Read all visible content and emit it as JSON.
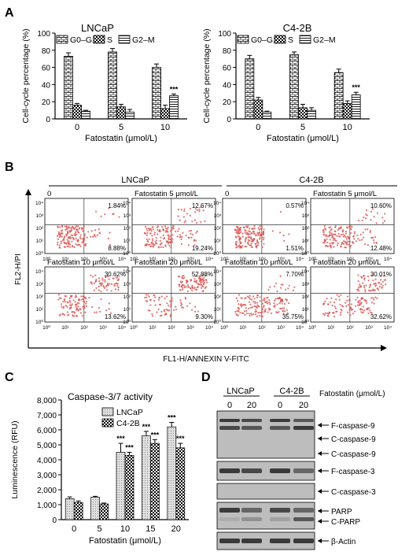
{
  "panel_letters": {
    "A": "A",
    "B": "B",
    "C": "C",
    "D": "D"
  },
  "colors": {
    "bar_fill": "#ffffff",
    "bar_stroke": "#000000",
    "scatter_dot": "#d9534f",
    "blot_bg": "#bdbdbd",
    "blot_band": "#2b2b2b",
    "light_bar": "#dcdcdc"
  },
  "chart_data": [
    {
      "panel": "A-left",
      "type": "bar",
      "title": "LNCaP",
      "xlabel": "Fatostatin (μmol/L)",
      "ylabel": "Cell-cycle percentage (%)",
      "ylim": [
        0,
        100
      ],
      "yticks": [
        0,
        20,
        40,
        60,
        80,
        100
      ],
      "categories": [
        "0",
        "5",
        "10"
      ],
      "legend": [
        "G0–G1",
        "S",
        "G2–M"
      ],
      "series": [
        {
          "name": "G0–G1",
          "pattern": "brick",
          "values": [
            73,
            78,
            60
          ],
          "errors": [
            4,
            4,
            4
          ]
        },
        {
          "name": "S",
          "pattern": "checker",
          "values": [
            16,
            14,
            12
          ],
          "errors": [
            2,
            3,
            4
          ]
        },
        {
          "name": "G2–M",
          "pattern": "hlines",
          "values": [
            9,
            8,
            27
          ],
          "errors": [
            1,
            3,
            2
          ]
        }
      ],
      "annotations": [
        {
          "category": "10",
          "series": "G2–M",
          "text": "***"
        }
      ]
    },
    {
      "panel": "A-right",
      "type": "bar",
      "title": "C4-2B",
      "xlabel": "Fatostatin (μmol/L)",
      "ylabel": "Cell-cycle percentage (%)",
      "ylim": [
        0,
        100
      ],
      "yticks": [
        0,
        20,
        40,
        60,
        80,
        100
      ],
      "categories": [
        "0",
        "5",
        "10"
      ],
      "legend": [
        "G0–G1",
        "S",
        "G2–M"
      ],
      "series": [
        {
          "name": "G0–G1",
          "pattern": "brick",
          "values": [
            70,
            75,
            54
          ],
          "errors": [
            4,
            3,
            4
          ]
        },
        {
          "name": "S",
          "pattern": "checker",
          "values": [
            22,
            13,
            18
          ],
          "errors": [
            3,
            4,
            3
          ]
        },
        {
          "name": "G2–M",
          "pattern": "hlines",
          "values": [
            8,
            10,
            28
          ],
          "errors": [
            1,
            3,
            3
          ]
        }
      ],
      "annotations": [
        {
          "category": "10",
          "series": "G2–M",
          "text": "***"
        }
      ]
    },
    {
      "panel": "B",
      "type": "scatter",
      "xlabel": "FL1-H/ANNEXIN V-FITC",
      "ylabel": "FL2-H/PI",
      "group_labels": [
        "LNCaP",
        "C4-2B"
      ],
      "axis_ticks": [
        "10⁰",
        "10¹",
        "10²",
        "10³",
        "10⁴"
      ],
      "plots": [
        {
          "label": "0",
          "upper_right": "1.84%",
          "lower_right": "8.88%"
        },
        {
          "label": "Fatostatin 5 μmol/L",
          "upper_right": "12.67%",
          "lower_right": "19.24%"
        },
        {
          "label": "0",
          "upper_right": "0.57%",
          "lower_right": "1.51%"
        },
        {
          "label": "Fatostatin 5 μmol/L",
          "upper_right": "10.60%",
          "lower_right": "12.48%"
        },
        {
          "label": "Fatostatin 10 μmol/L",
          "upper_right": "30.62%",
          "lower_right": "13.62%"
        },
        {
          "label": "Fatostatin 20 μmol/L",
          "upper_right": "52.88%",
          "lower_right": "9.30%"
        },
        {
          "label": "Fatostatin 10 μmol/L",
          "upper_right": "7.70%",
          "lower_right": "35.75%"
        },
        {
          "label": "Fatostatin 20 μmol/L",
          "upper_right": "30.01%",
          "lower_right": "32.62%"
        }
      ]
    },
    {
      "panel": "C",
      "type": "bar",
      "title": "Caspase-3/7 activity",
      "xlabel": "Fatostatin (μmol/L)",
      "ylabel": "Luminescence (RFU)",
      "ylim": [
        0,
        8000
      ],
      "yticks": [
        "0",
        "1,000",
        "2,000",
        "3,000",
        "4,000",
        "5,000",
        "6,000",
        "7,000",
        "8,000"
      ],
      "categories": [
        "0",
        "5",
        "10",
        "15",
        "20"
      ],
      "legend": [
        "LNCaP",
        "C4-2B"
      ],
      "series": [
        {
          "name": "LNCaP",
          "pattern": "dots",
          "values": [
            1400,
            1500,
            4500,
            5600,
            6200
          ],
          "errors": [
            120,
            60,
            600,
            300,
            300
          ]
        },
        {
          "name": "C4-2B",
          "pattern": "checker",
          "values": [
            1150,
            1050,
            4300,
            5100,
            4800
          ],
          "errors": [
            100,
            60,
            200,
            250,
            300
          ]
        }
      ],
      "annotations": [
        {
          "category": "10",
          "series": "LNCaP",
          "text": "***"
        },
        {
          "category": "10",
          "series": "C4-2B",
          "text": "***"
        },
        {
          "category": "15",
          "series": "LNCaP",
          "text": "***"
        },
        {
          "category": "15",
          "series": "C4-2B",
          "text": "***"
        },
        {
          "category": "20",
          "series": "LNCaP",
          "text": "***"
        },
        {
          "category": "20",
          "series": "C4-2B",
          "text": "***"
        }
      ]
    },
    {
      "panel": "D",
      "type": "table",
      "cell_lines": [
        "LNCaP",
        "C4-2B"
      ],
      "doses": [
        "0",
        "20",
        "0",
        "20"
      ],
      "dose_header": "Fatostatin (μmol/L)",
      "band_labels": [
        "F-caspase-9",
        "C-caspase-9",
        "C-caspase-9",
        "F-caspase-3",
        "C-caspase-3",
        "PARP",
        "C-PARP",
        "β-Actin"
      ]
    }
  ]
}
